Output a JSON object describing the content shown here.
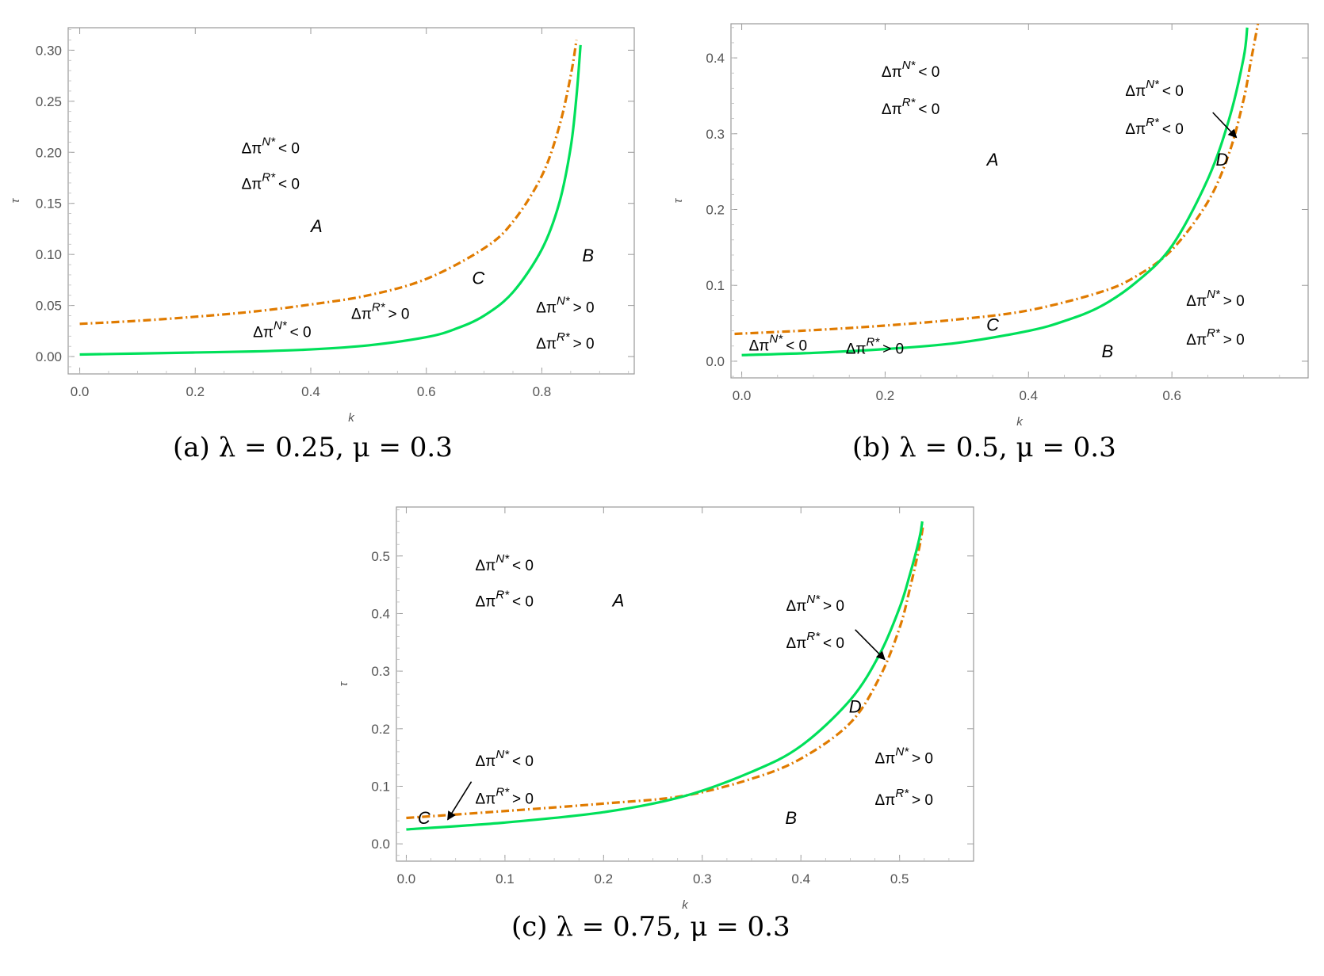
{
  "chart_data": [
    {
      "type": "line",
      "caption": "(a) λ = 0.25, μ = 0.3",
      "xlabel": "k",
      "ylabel": "τ",
      "xlim": [
        -0.02,
        0.96
      ],
      "ylim": [
        -0.017,
        0.322
      ],
      "xticks": [
        "0.0",
        "0.2",
        "0.4",
        "0.6",
        "0.8"
      ],
      "yticks": [
        "0.00",
        "0.05",
        "0.10",
        "0.15",
        "0.20",
        "0.25",
        "0.30"
      ],
      "series": [
        {
          "color": "#e07b00",
          "dash": "dot-dash",
          "x": [
            0.0,
            0.1,
            0.2,
            0.3,
            0.4,
            0.5,
            0.6,
            0.7,
            0.75,
            0.8,
            0.83,
            0.85,
            0.86
          ],
          "y": [
            0.032,
            0.035,
            0.039,
            0.044,
            0.051,
            0.06,
            0.076,
            0.106,
            0.132,
            0.177,
            0.225,
            0.275,
            0.31
          ]
        },
        {
          "color": "#00e05a",
          "dash": "solid",
          "x": [
            0.0,
            0.1,
            0.2,
            0.3,
            0.4,
            0.5,
            0.6,
            0.65,
            0.7,
            0.75,
            0.8,
            0.83,
            0.85,
            0.86,
            0.867
          ],
          "y": [
            0.002,
            0.003,
            0.004,
            0.005,
            0.007,
            0.011,
            0.019,
            0.027,
            0.04,
            0.063,
            0.105,
            0.15,
            0.205,
            0.255,
            0.305
          ]
        }
      ],
      "annotations": [
        {
          "text": "A",
          "x": 0.41,
          "y": 0.122
        },
        {
          "text": "B",
          "x": 0.88,
          "y": 0.093
        },
        {
          "text": "C",
          "x": 0.69,
          "y": 0.071
        }
      ],
      "inequalities": [
        {
          "sup": "N*",
          "sign": "< 0",
          "x": 0.28,
          "y": 0.199
        },
        {
          "sup": "R*",
          "sign": "< 0",
          "x": 0.28,
          "y": 0.164
        },
        {
          "sup": "N*",
          "sign": "< 0",
          "x": 0.3,
          "y": 0.019
        },
        {
          "sup": "R*",
          "sign": "> 0",
          "x": 0.47,
          "y": 0.037
        },
        {
          "sup": "N*",
          "sign": "> 0",
          "x": 0.79,
          "y": 0.043
        },
        {
          "sup": "R*",
          "sign": "> 0",
          "x": 0.79,
          "y": 0.008
        }
      ]
    },
    {
      "type": "line",
      "caption": "(b) λ = 0.5, μ = 0.3",
      "xlabel": "k",
      "ylabel": "τ",
      "xlim": [
        -0.015,
        0.79
      ],
      "ylim": [
        -0.022,
        0.445
      ],
      "xticks": [
        "0.0",
        "0.2",
        "0.4",
        "0.6"
      ],
      "yticks": [
        "0.0",
        "0.1",
        "0.2",
        "0.3",
        "0.4"
      ],
      "series": [
        {
          "color": "#e07b00",
          "dash": "dot-dash",
          "x": [
            -0.01,
            0.1,
            0.2,
            0.3,
            0.4,
            0.5,
            0.55,
            0.6,
            0.65,
            0.68,
            0.7,
            0.71,
            0.72
          ],
          "y": [
            0.036,
            0.041,
            0.047,
            0.055,
            0.067,
            0.091,
            0.112,
            0.147,
            0.21,
            0.275,
            0.345,
            0.395,
            0.445
          ]
        },
        {
          "color": "#00e05a",
          "dash": "solid",
          "x": [
            0.0,
            0.1,
            0.2,
            0.3,
            0.4,
            0.45,
            0.5,
            0.55,
            0.6,
            0.65,
            0.68,
            0.7,
            0.705
          ],
          "y": [
            0.008,
            0.011,
            0.016,
            0.024,
            0.04,
            0.053,
            0.072,
            0.104,
            0.152,
            0.24,
            0.32,
            0.4,
            0.44
          ]
        }
      ],
      "annotations": [
        {
          "text": "A",
          "x": 0.35,
          "y": 0.258
        },
        {
          "text": "B",
          "x": 0.51,
          "y": 0.005
        },
        {
          "text": "C",
          "x": 0.35,
          "y": 0.04
        },
        {
          "text": "D",
          "x": 0.67,
          "y": 0.258
        }
      ],
      "inequalities": [
        {
          "sup": "N*",
          "sign": "< 0",
          "x": 0.195,
          "y": 0.375
        },
        {
          "sup": "R*",
          "sign": "< 0",
          "x": 0.195,
          "y": 0.326
        },
        {
          "sup": "N*",
          "sign": "< 0",
          "x": 0.535,
          "y": 0.35
        },
        {
          "sup": "R*",
          "sign": "< 0",
          "x": 0.535,
          "y": 0.3
        },
        {
          "sup": "N*",
          "sign": "< 0",
          "x": 0.01,
          "y": 0.014
        },
        {
          "sup": "R*",
          "sign": "> 0",
          "x": 0.145,
          "y": 0.01
        },
        {
          "sup": "N*",
          "sign": "> 0",
          "x": 0.62,
          "y": 0.073
        },
        {
          "sup": "R*",
          "sign": "> 0",
          "x": 0.62,
          "y": 0.022
        }
      ],
      "arrows": [
        {
          "from": [
            0.657,
            0.328
          ],
          "to": [
            0.69,
            0.295
          ]
        }
      ]
    },
    {
      "type": "line",
      "caption": "(c) λ = 0.75, μ = 0.3",
      "xlabel": "k",
      "ylabel": "τ",
      "xlim": [
        -0.01,
        0.575
      ],
      "ylim": [
        -0.03,
        0.585
      ],
      "xticks": [
        "0.0",
        "0.1",
        "0.2",
        "0.3",
        "0.4",
        "0.5"
      ],
      "yticks": [
        "0.0",
        "0.1",
        "0.2",
        "0.3",
        "0.4",
        "0.5"
      ],
      "series": [
        {
          "color": "#e07b00",
          "dash": "dot-dash",
          "x": [
            0.0,
            0.1,
            0.2,
            0.28,
            0.35,
            0.4,
            0.45,
            0.48,
            0.5,
            0.51,
            0.52,
            0.524
          ],
          "y": [
            0.045,
            0.057,
            0.07,
            0.083,
            0.113,
            0.148,
            0.21,
            0.29,
            0.375,
            0.44,
            0.515,
            0.555
          ]
        },
        {
          "color": "#00e05a",
          "dash": "solid",
          "x": [
            0.0,
            0.1,
            0.2,
            0.28,
            0.35,
            0.4,
            0.45,
            0.48,
            0.5,
            0.51,
            0.52,
            0.523
          ],
          "y": [
            0.025,
            0.037,
            0.055,
            0.082,
            0.125,
            0.17,
            0.25,
            0.33,
            0.41,
            0.465,
            0.53,
            0.56
          ]
        }
      ],
      "annotations": [
        {
          "text": "A",
          "x": 0.215,
          "y": 0.412
        },
        {
          "text": "B",
          "x": 0.39,
          "y": 0.035
        },
        {
          "text": "C",
          "x": 0.018,
          "y": 0.035
        },
        {
          "text": "D",
          "x": 0.455,
          "y": 0.228
        }
      ],
      "inequalities": [
        {
          "sup": "N*",
          "sign": "< 0",
          "x": 0.07,
          "y": 0.475
        },
        {
          "sup": "R*",
          "sign": "< 0",
          "x": 0.07,
          "y": 0.412
        },
        {
          "sup": "N*",
          "sign": "> 0",
          "x": 0.385,
          "y": 0.405
        },
        {
          "sup": "R*",
          "sign": "< 0",
          "x": 0.385,
          "y": 0.34
        },
        {
          "sup": "N*",
          "sign": "> 0",
          "x": 0.475,
          "y": 0.14
        },
        {
          "sup": "R*",
          "sign": "> 0",
          "x": 0.475,
          "y": 0.068
        },
        {
          "sup": "N*",
          "sign": "< 0",
          "x": 0.07,
          "y": 0.135
        },
        {
          "sup": "R*",
          "sign": "> 0",
          "x": 0.07,
          "y": 0.07
        }
      ],
      "arrows": [
        {
          "from": [
            0.455,
            0.372
          ],
          "to": [
            0.485,
            0.32
          ]
        },
        {
          "from": [
            0.066,
            0.108
          ],
          "to": [
            0.042,
            0.042
          ]
        }
      ]
    }
  ]
}
